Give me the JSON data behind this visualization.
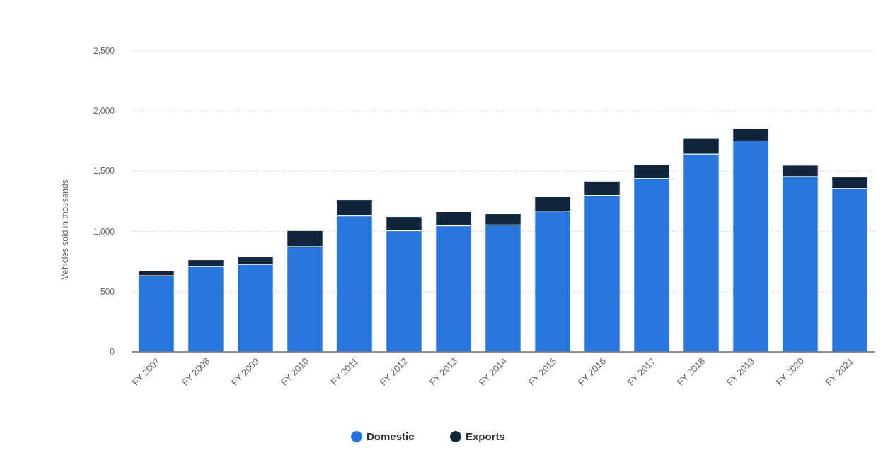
{
  "chart_data": {
    "type": "bar",
    "stacked": true,
    "ylabel": "Vehicles sold in thousands",
    "categories": [
      "FY 2007",
      "FY 2008",
      "FY 2009",
      "FY 2010",
      "FY 2011",
      "FY 2012",
      "FY 2013",
      "FY 2014",
      "FY 2015",
      "FY 2016",
      "FY 2017",
      "FY 2018",
      "FY 2019",
      "FY 2020",
      "FY 2021"
    ],
    "series": [
      {
        "name": "Domestic",
        "color": "#2876dd",
        "values": [
          634,
          710,
          728,
          875,
          1129,
          1006,
          1047,
          1055,
          1170,
          1300,
          1440,
          1643,
          1752,
          1456,
          1357
        ]
      },
      {
        "name": "Exports",
        "color": "#11263c",
        "values": [
          38,
          55,
          61,
          133,
          135,
          117,
          118,
          92,
          118,
          119,
          118,
          129,
          103,
          94,
          95
        ]
      }
    ],
    "ylim": [
      0,
      2500
    ],
    "yticks": [
      {
        "value": 0,
        "label": "0"
      },
      {
        "value": 500,
        "label": "500"
      },
      {
        "value": 1000,
        "label": "1,000"
      },
      {
        "value": 1500,
        "label": "1,500"
      },
      {
        "value": 2000,
        "label": "2,000"
      },
      {
        "value": 2500,
        "label": "2,500"
      }
    ],
    "grid": "y",
    "legend": "bottom"
  }
}
